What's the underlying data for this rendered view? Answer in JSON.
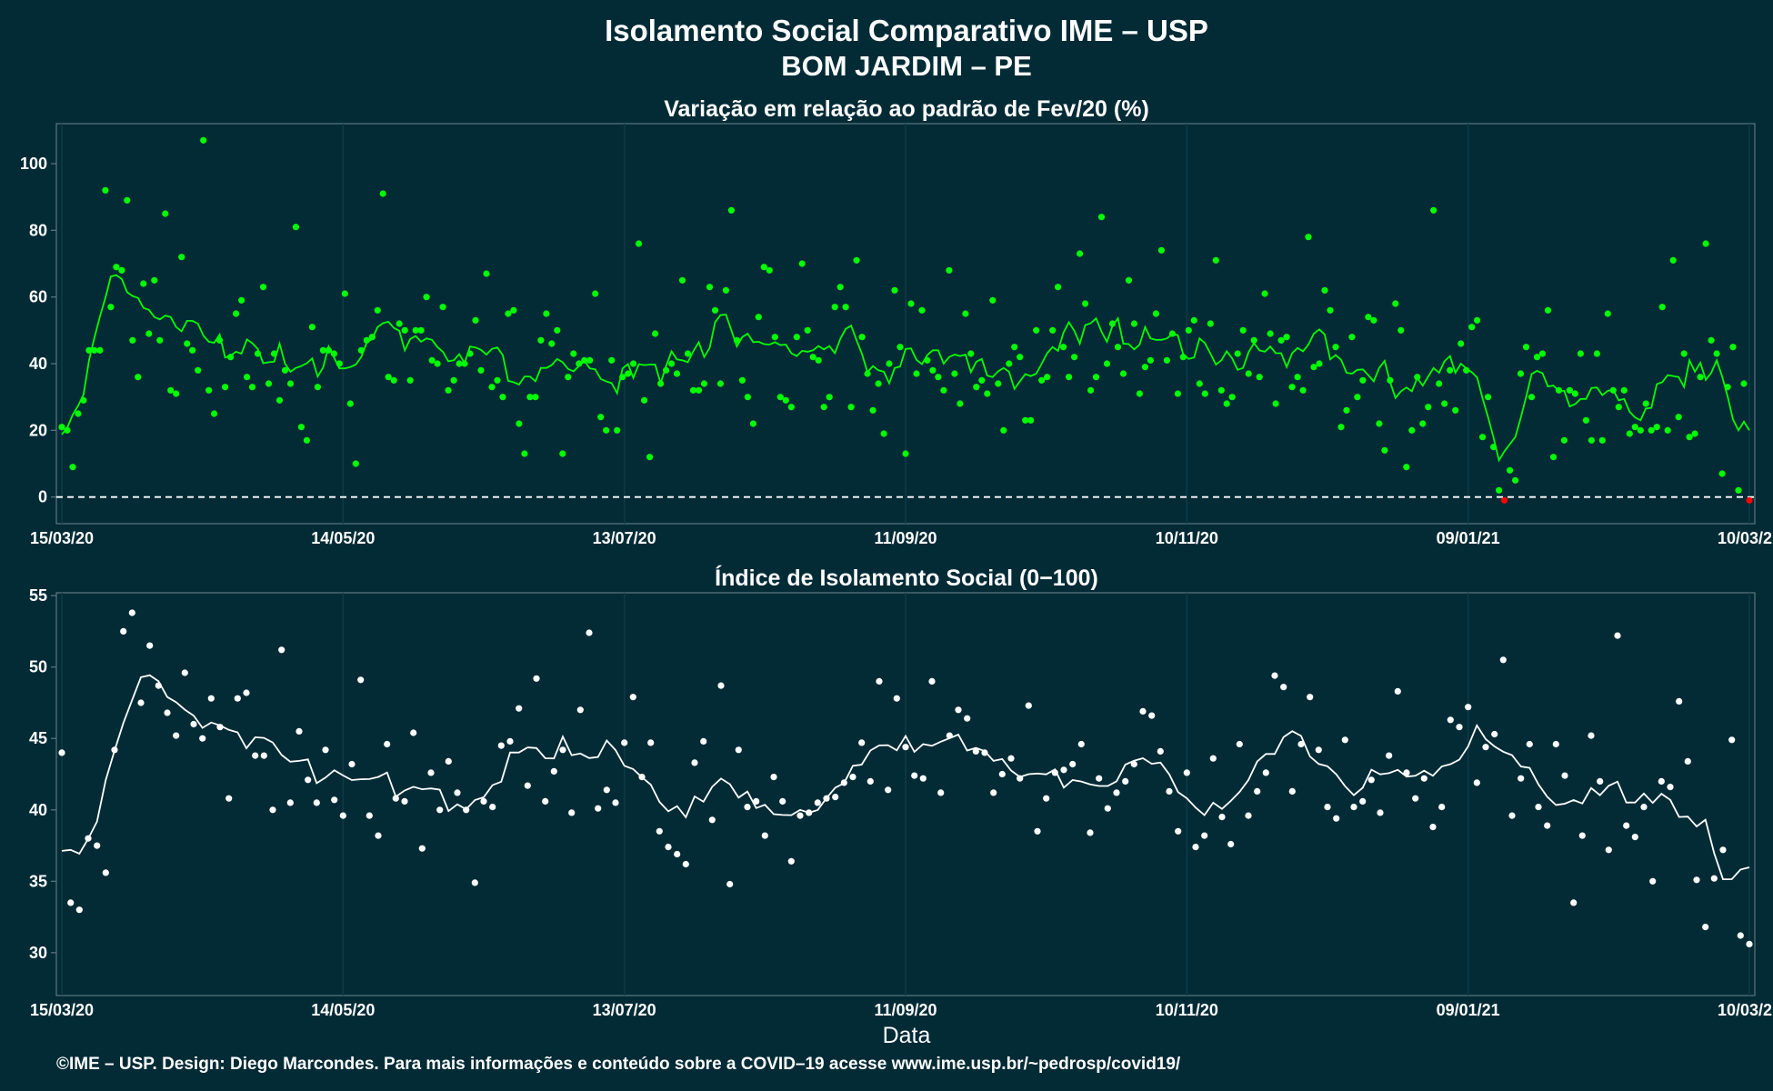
{
  "title": "Isolamento Social Comparativo IME – USP",
  "subtitle": "BOM JARDIM – PE",
  "xlabel": "Data",
  "footer": "©IME – USP. Design: Diego Marcondes. Para mais informações e conteúdo sobre a COVID–19 acesse www.ime.usp.br/~pedrosp/covid19/",
  "colors": {
    "background": "#022b36",
    "panel_border": "#5f7780",
    "grid": "#0f3a46",
    "text": "#ffffff",
    "positive": "#00ff00",
    "negative": "#ff0000",
    "index": "#ffffff"
  },
  "x_ticks": [
    "15/03/20",
    "14/05/20",
    "13/07/20",
    "11/09/20",
    "10/11/20",
    "09/01/21",
    "10/03/21"
  ],
  "chart_data": [
    {
      "type": "scatter",
      "title": "Variação em relação ao padrão de Fev/20 (%)",
      "x_start": "15/03/20",
      "x_end": "10/03/21",
      "x_tick_labels": [
        "15/03/20",
        "14/05/20",
        "13/07/20",
        "11/09/20",
        "10/11/20",
        "09/01/21",
        "10/03/21"
      ],
      "ylim": [
        -8,
        112
      ],
      "y_ticks": [
        0,
        20,
        40,
        60,
        80,
        100
      ],
      "reference_line": 0,
      "series": [
        {
          "kind": "points",
          "values": [
            21,
            20,
            9,
            25,
            29,
            44,
            44,
            44,
            92,
            57,
            69,
            68,
            89,
            47,
            36,
            64,
            49,
            65,
            47,
            85,
            32,
            31,
            72,
            46,
            44,
            38,
            107,
            32,
            25,
            47,
            33,
            42,
            55,
            59,
            36,
            33,
            43,
            63,
            34,
            43,
            29,
            38,
            34,
            81,
            21,
            17,
            51,
            33,
            44,
            44,
            43,
            40,
            61,
            28,
            10,
            44,
            47,
            48,
            56,
            91,
            36,
            35,
            52,
            50,
            35,
            50,
            50,
            60,
            41,
            40,
            57,
            32,
            35,
            40,
            40,
            43,
            53,
            38,
            67,
            33,
            35,
            30,
            55,
            56,
            22,
            13,
            30,
            30,
            47,
            55,
            46,
            50,
            13,
            36,
            43,
            40,
            41,
            41,
            61,
            24,
            20,
            41,
            20,
            36,
            37,
            40,
            76,
            29,
            12,
            49,
            34,
            38,
            40,
            37,
            65,
            43,
            32,
            32,
            34,
            63,
            56,
            34,
            62,
            86,
            47,
            35,
            30,
            22,
            54,
            69,
            68,
            48,
            30,
            29,
            27,
            48,
            70,
            50,
            42,
            41,
            27,
            30,
            57,
            63,
            57,
            27,
            71,
            48,
            37,
            26,
            34,
            19,
            40,
            62,
            45,
            13,
            58,
            37,
            56,
            41,
            38,
            36,
            32,
            68,
            37,
            28,
            55,
            43,
            33,
            35,
            31,
            59,
            34,
            20,
            40,
            45,
            42,
            23,
            23,
            50,
            35,
            36,
            50,
            63,
            45,
            36,
            42,
            73,
            58,
            32,
            36,
            84,
            40,
            52,
            45,
            37,
            65,
            52,
            31,
            39,
            41,
            55,
            74,
            41,
            49,
            31,
            42,
            50,
            53,
            34,
            31,
            52,
            71,
            32,
            28,
            30,
            43,
            50,
            37,
            47,
            36,
            61,
            49,
            28,
            47,
            48,
            33,
            36,
            32,
            78,
            39,
            40,
            62,
            56,
            45,
            21,
            26,
            48,
            30,
            35,
            54,
            53,
            22,
            14,
            35,
            58,
            50,
            9,
            20,
            36,
            22,
            27,
            86,
            34,
            28,
            38,
            26,
            46,
            38,
            51,
            53,
            18,
            30,
            15
          ],
          "color_key": "positive"
        },
        {
          "kind": "points",
          "values": [
            2,
            -1,
            8,
            5,
            37,
            45,
            30,
            42,
            43,
            56,
            12,
            32,
            17,
            32,
            31,
            43,
            23,
            17,
            43,
            17,
            55,
            32,
            27,
            32,
            19,
            21,
            20,
            28,
            20,
            21,
            57,
            20,
            71,
            24,
            43,
            18,
            19,
            36,
            76,
            47,
            43,
            7,
            33,
            45,
            2,
            34,
            -1
          ],
          "color_key": "mixed"
        },
        {
          "kind": "moving_average",
          "color_key": "positive"
        }
      ]
    },
    {
      "type": "scatter",
      "title": "Índice de Isolamento Social (0−100)",
      "x_start": "15/03/20",
      "x_end": "10/03/21",
      "x_tick_labels": [
        "15/03/20",
        "14/05/20",
        "13/07/20",
        "11/09/20",
        "10/11/20",
        "09/01/21",
        "10/03/21"
      ],
      "ylim": [
        27,
        55.2
      ],
      "y_ticks": [
        30,
        35,
        40,
        45,
        50,
        55
      ],
      "series": [
        {
          "kind": "points",
          "values": [
            44,
            33.5,
            33,
            38,
            37.5,
            35.6,
            44.2,
            52.5,
            53.8,
            47.5,
            51.5,
            48.7,
            46.8,
            45.2,
            49.6,
            46,
            45,
            47.8,
            45.8,
            40.8,
            47.8,
            48.2,
            43.8,
            43.8,
            40,
            51.2,
            40.5,
            45.5,
            42.1,
            40.5,
            44.2,
            40.7,
            39.6,
            43.2,
            49.1,
            39.6,
            38.2,
            44.6,
            40.8,
            40.6,
            45.4,
            37.3,
            42.6,
            40,
            43.4,
            41.2,
            40,
            34.9,
            40.6,
            40.2,
            44.5,
            44.8,
            47.1,
            41.7,
            49.2,
            40.6,
            42.7,
            44.2,
            39.8,
            47,
            52.4,
            40.1,
            41.4,
            40.5,
            44.7,
            47.9,
            42.3,
            44.7,
            38.5,
            37.4,
            36.9,
            36.2,
            43.3,
            44.8,
            39.3,
            48.7,
            34.8,
            44.2,
            40.2,
            40.6,
            38.2,
            42.3,
            40.6,
            36.4,
            39.6,
            39.8,
            40.5,
            40.8,
            40.9,
            41.9,
            42.3,
            44.7,
            42,
            49,
            41.4,
            47.8,
            44.4,
            42.4,
            42.2,
            49,
            41.2,
            45.2,
            47,
            46.4,
            44.1,
            44,
            41.2,
            42.5,
            43.6,
            42.2,
            47.3,
            38.5,
            40.8,
            42.6,
            42.8,
            43.2,
            44.6,
            38.4,
            42.2,
            40.1,
            41.2,
            42,
            43.2,
            46.9,
            46.6,
            44.1,
            41.3,
            38.5,
            42.6,
            37.4,
            38.2,
            43.6,
            39.5,
            37.6,
            44.6,
            39.6,
            41.3,
            42.6,
            49.4,
            48.6,
            41.3,
            44.6,
            47.9,
            44.2,
            40.2,
            39.4,
            44.9,
            40.2,
            40.6,
            42.1,
            39.8,
            43.8,
            48.3,
            42.6,
            40.8,
            42.2,
            38.8,
            40.2,
            46.3,
            45.8,
            47.2,
            41.9,
            44.4,
            45.3,
            50.5,
            39.6,
            42.2,
            44.6,
            40.2,
            38.9,
            44.6,
            42.4,
            33.5,
            38.2,
            45.2,
            42,
            37.2,
            52.2,
            38.9,
            38.1,
            40.2,
            35,
            42,
            41.6,
            47.6,
            43.4,
            35.1,
            31.8,
            35.2,
            37.2,
            44.9,
            31.2,
            30.6
          ],
          "color_key": "index"
        },
        {
          "kind": "moving_average",
          "color_key": "index"
        }
      ]
    }
  ]
}
